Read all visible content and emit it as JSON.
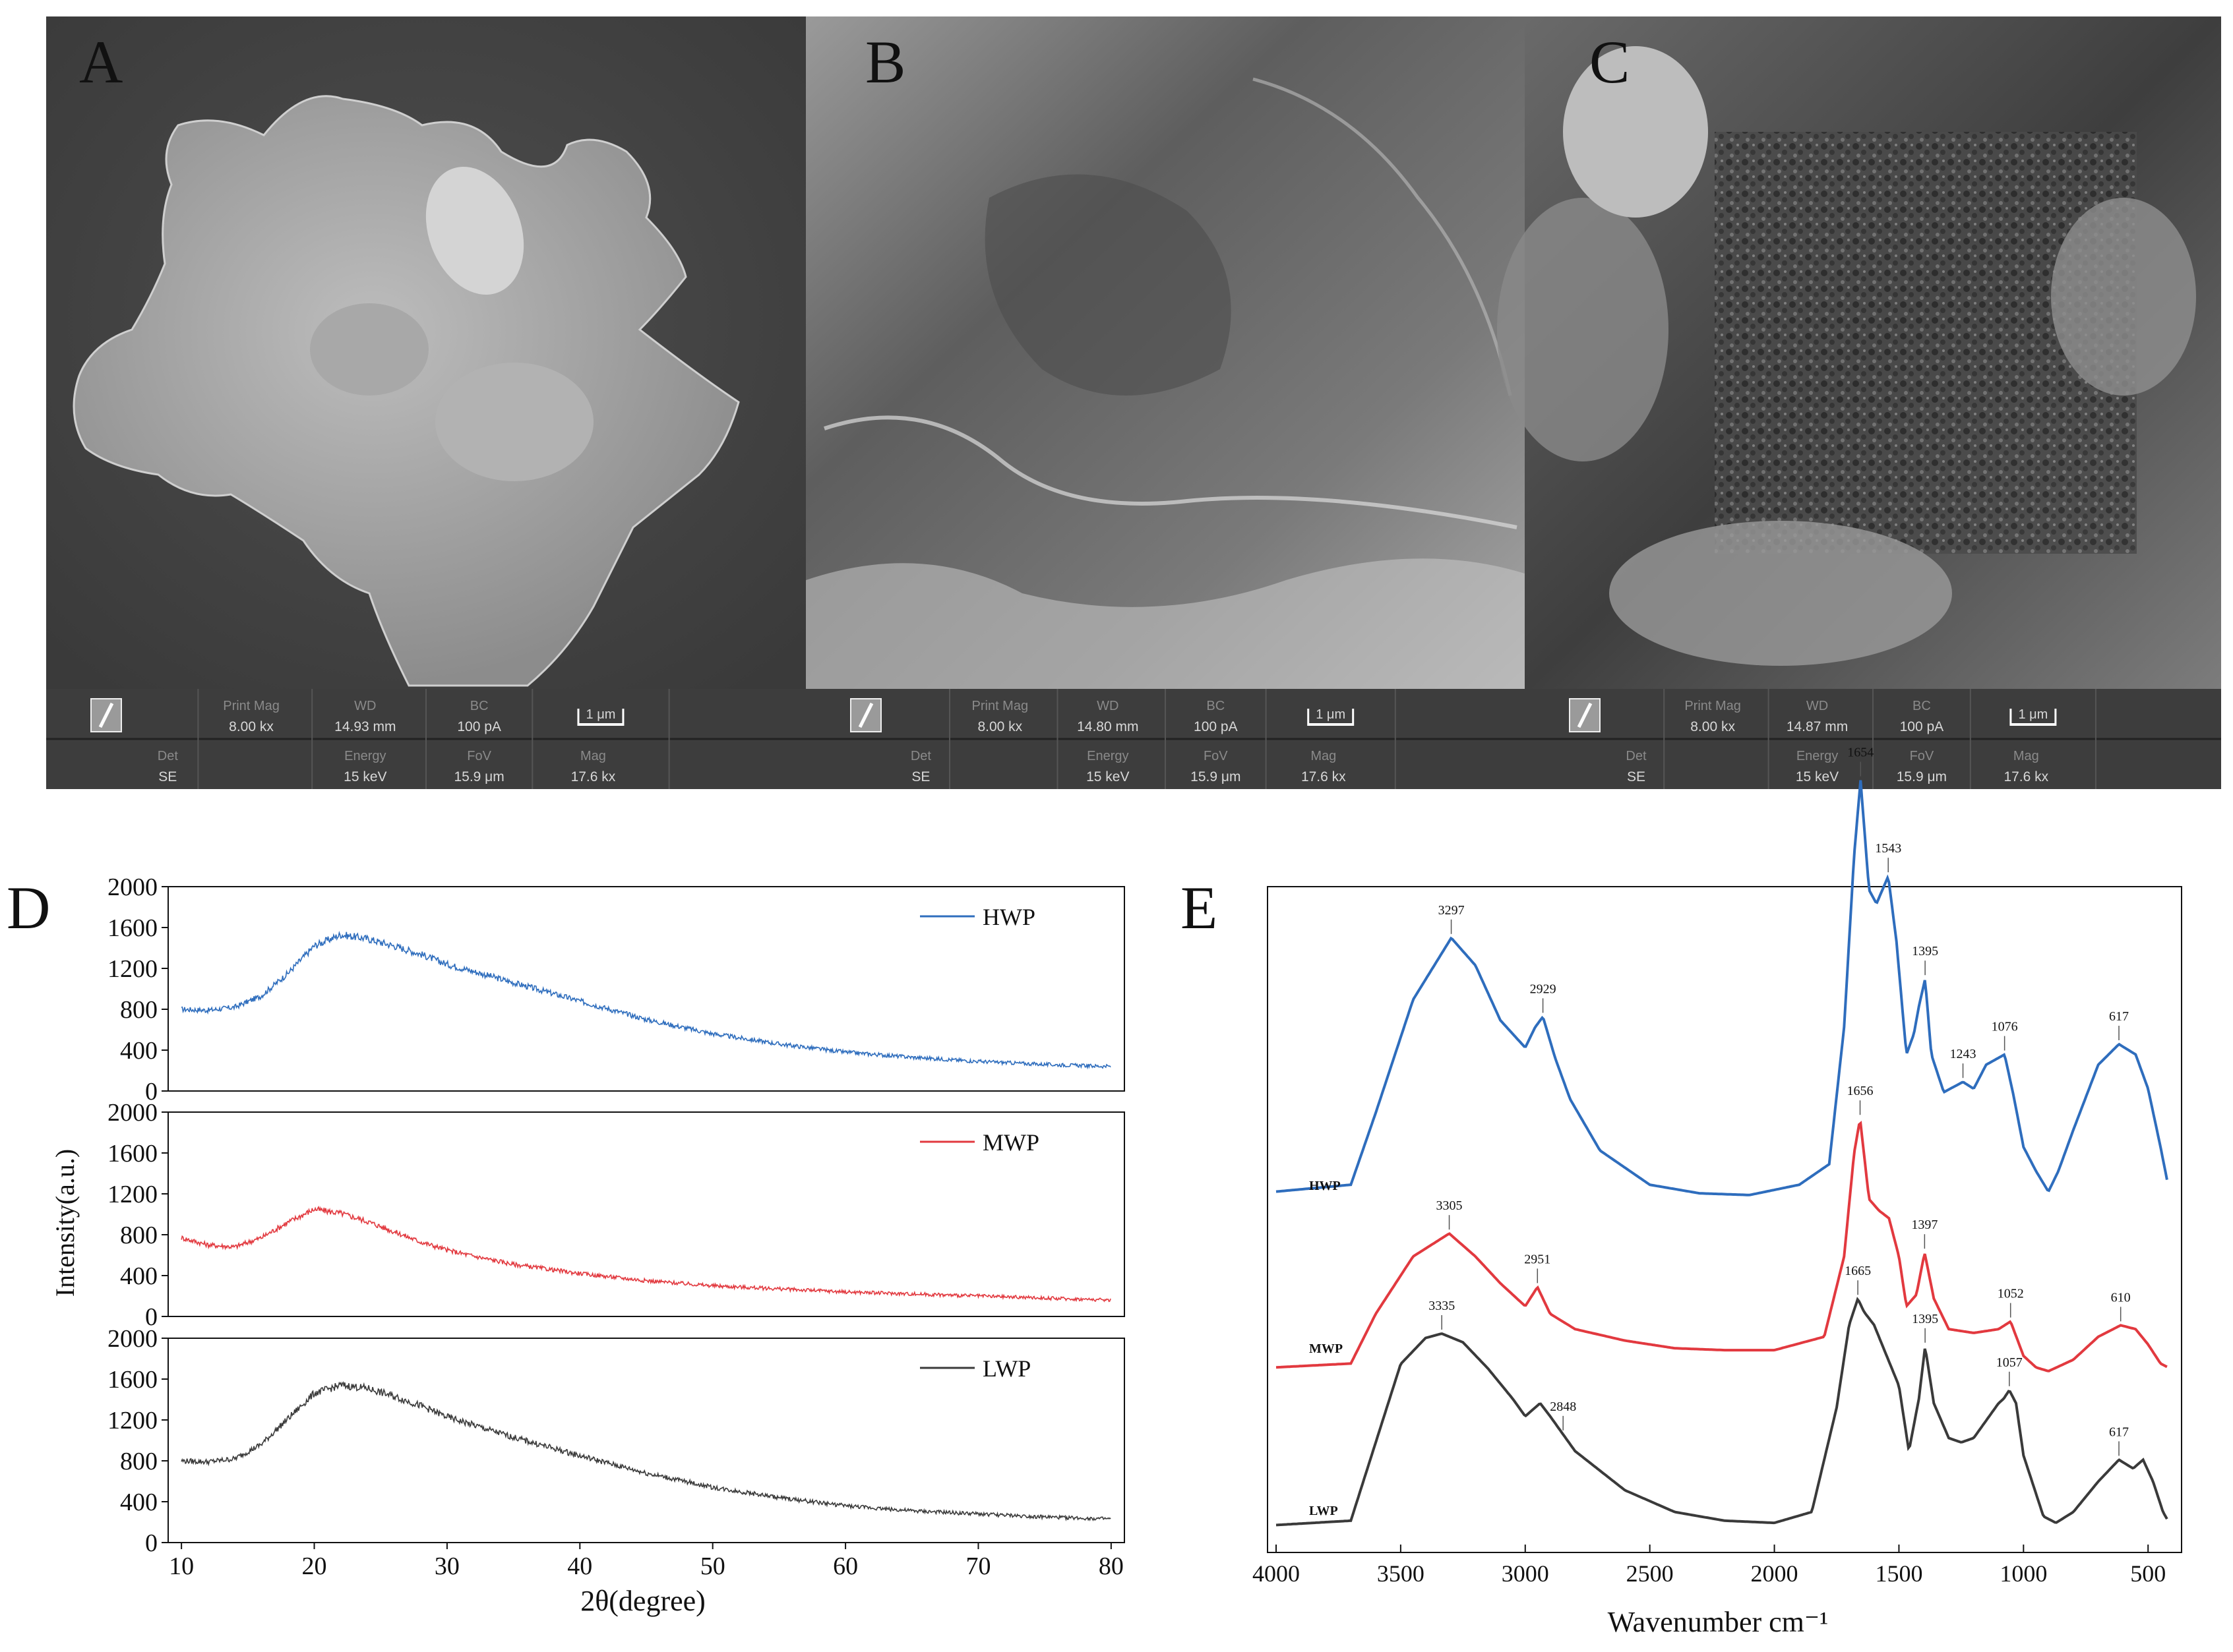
{
  "figure": {
    "panel_labels": [
      "A",
      "B",
      "C",
      "D",
      "E"
    ]
  },
  "sem_panels": [
    {
      "label": "A",
      "info": {
        "print_mag_label": "Print Mag",
        "print_mag": "8.00 kx",
        "wd_label": "WD",
        "wd": "14.93 mm",
        "bc_label": "BC",
        "bc": "100 pA",
        "scale": "1 μm",
        "det_label": "Det",
        "det": "SE",
        "energy_label": "Energy",
        "energy": "15 keV",
        "fov_label": "FoV",
        "fov": "15.9 μm",
        "mag_label": "Mag",
        "mag": "17.6 kx"
      }
    },
    {
      "label": "B",
      "info": {
        "print_mag_label": "Print Mag",
        "print_mag": "8.00 kx",
        "wd_label": "WD",
        "wd": "14.80 mm",
        "bc_label": "BC",
        "bc": "100 pA",
        "scale": "1 μm",
        "det_label": "Det",
        "det": "SE",
        "energy_label": "Energy",
        "energy": "15 keV",
        "fov_label": "FoV",
        "fov": "15.9 μm",
        "mag_label": "Mag",
        "mag": "17.6 kx"
      }
    },
    {
      "label": "C",
      "info": {
        "print_mag_label": "Print Mag",
        "print_mag": "8.00 kx",
        "wd_label": "WD",
        "wd": "14.87 mm",
        "bc_label": "BC",
        "bc": "100 pA",
        "scale": "1 μm",
        "det_label": "Det",
        "det": "SE",
        "energy_label": "Energy",
        "energy": "15 keV",
        "fov_label": "FoV",
        "fov": "15.9 μm",
        "mag_label": "Mag",
        "mag": "17.6 kx"
      }
    }
  ],
  "chart_data": [
    {
      "panel": "D",
      "type": "line",
      "xlabel": "2θ(degree)",
      "ylabel": "Intensity(a.u.)",
      "xlim": [
        9,
        81
      ],
      "ylim": [
        0,
        2000
      ],
      "xticks": [
        10,
        20,
        30,
        40,
        50,
        60,
        70,
        80
      ],
      "yticks": [
        0,
        400,
        800,
        1200,
        1600,
        2000
      ],
      "legend_position": "top-right",
      "series": [
        {
          "name": "HWP",
          "color": "#2e6dbd",
          "x": [
            10,
            12,
            14,
            16,
            18,
            20,
            22,
            24,
            26,
            28,
            30,
            32,
            35,
            40,
            45,
            50,
            55,
            60,
            65,
            70,
            75,
            80
          ],
          "y": [
            800,
            790,
            820,
            930,
            1150,
            1420,
            1530,
            1490,
            1420,
            1340,
            1240,
            1170,
            1060,
            880,
            700,
            560,
            460,
            380,
            330,
            290,
            260,
            240
          ]
        },
        {
          "name": "MWP",
          "color": "#e2393f",
          "x": [
            10,
            12,
            14,
            16,
            18,
            20,
            22,
            24,
            26,
            28,
            30,
            32,
            35,
            40,
            45,
            50,
            55,
            60,
            65,
            70,
            75,
            80
          ],
          "y": [
            770,
            700,
            680,
            770,
            920,
            1050,
            1010,
            930,
            830,
            730,
            650,
            590,
            510,
            420,
            350,
            300,
            270,
            240,
            220,
            200,
            180,
            160
          ]
        },
        {
          "name": "LWP",
          "color": "#3a3a3a",
          "x": [
            10,
            12,
            14,
            16,
            18,
            20,
            22,
            24,
            26,
            28,
            30,
            32,
            35,
            40,
            45,
            50,
            55,
            60,
            65,
            70,
            75,
            80
          ],
          "y": [
            800,
            790,
            820,
            960,
            1210,
            1460,
            1540,
            1510,
            1430,
            1340,
            1230,
            1150,
            1030,
            850,
            680,
            540,
            440,
            360,
            310,
            280,
            250,
            230
          ]
        }
      ]
    },
    {
      "panel": "E",
      "type": "line",
      "xlabel": "Wavenumber cm⁻¹",
      "ylabel": "",
      "xlim": [
        4000,
        400
      ],
      "x_reversed": true,
      "xticks": [
        4000,
        3500,
        3000,
        2500,
        2000,
        1500,
        1000,
        500
      ],
      "series": [
        {
          "name": "HWP",
          "color": "#2e6dbd",
          "x": [
            4000,
            3700,
            3600,
            3450,
            3297,
            3200,
            3100,
            3000,
            2960,
            2929,
            2880,
            2820,
            2700,
            2500,
            2300,
            2100,
            1900,
            1780,
            1720,
            1680,
            1654,
            1620,
            1590,
            1543,
            1510,
            1470,
            1440,
            1420,
            1395,
            1370,
            1320,
            1243,
            1200,
            1150,
            1076,
            1040,
            1000,
            950,
            900,
            860,
            800,
            700,
            617,
            550,
            500,
            450,
            420
          ],
          "y": [
            20,
            40,
            250,
            580,
            760,
            680,
            520,
            440,
            500,
            530,
            410,
            290,
            140,
            40,
            15,
            10,
            40,
            100,
            500,
            1000,
            1220,
            900,
            860,
            940,
            750,
            420,
            480,
            560,
            640,
            420,
            310,
            340,
            320,
            390,
            420,
            300,
            150,
            80,
            20,
            80,
            200,
            390,
            450,
            420,
            320,
            150,
            40
          ]
        },
        {
          "name": "MWP",
          "color": "#e2393f",
          "x": [
            4000,
            3700,
            3600,
            3450,
            3305,
            3200,
            3100,
            3000,
            2951,
            2900,
            2800,
            2600,
            2400,
            2200,
            2000,
            1800,
            1720,
            1680,
            1656,
            1620,
            1580,
            1540,
            1500,
            1470,
            1430,
            1397,
            1360,
            1300,
            1200,
            1100,
            1052,
            1000,
            950,
            900,
            800,
            700,
            610,
            550,
            500,
            450,
            420
          ],
          "y": [
            10,
            20,
            150,
            300,
            360,
            300,
            230,
            170,
            220,
            150,
            110,
            80,
            60,
            55,
            55,
            90,
            300,
            570,
            660,
            450,
            420,
            400,
            300,
            170,
            200,
            310,
            190,
            110,
            100,
            110,
            130,
            40,
            10,
            0,
            30,
            90,
            120,
            110,
            70,
            20,
            10
          ]
        },
        {
          "name": "LWP",
          "color": "#3a3a3a",
          "x": [
            4000,
            3700,
            3600,
            3500,
            3400,
            3335,
            3250,
            3150,
            3050,
            3000,
            2940,
            2900,
            2800,
            2600,
            2400,
            2200,
            2000,
            1850,
            1750,
            1700,
            1665,
            1640,
            1600,
            1550,
            1500,
            1460,
            1420,
            1395,
            1360,
            1300,
            1250,
            1200,
            1150,
            1100,
            1080,
            1057,
            1030,
            1000,
            960,
            920,
            870,
            800,
            700,
            617,
            560,
            520,
            480,
            440,
            420
          ],
          "y": [
            10,
            20,
            200,
            380,
            440,
            450,
            430,
            370,
            300,
            260,
            290,
            260,
            180,
            90,
            40,
            20,
            15,
            40,
            280,
            470,
            530,
            500,
            470,
            400,
            330,
            180,
            300,
            420,
            290,
            210,
            200,
            210,
            250,
            290,
            300,
            320,
            290,
            170,
            100,
            30,
            15,
            40,
            110,
            160,
            140,
            160,
            110,
            40,
            20
          ]
        }
      ],
      "annotations": [
        {
          "series": "HWP",
          "x": 3297,
          "text": "3297"
        },
        {
          "series": "HWP",
          "x": 2929,
          "text": "2929"
        },
        {
          "series": "HWP",
          "x": 1654,
          "text": "1654"
        },
        {
          "series": "HWP",
          "x": 1543,
          "text": "1543"
        },
        {
          "series": "HWP",
          "x": 1395,
          "text": "1395"
        },
        {
          "series": "HWP",
          "x": 1243,
          "text": "1243"
        },
        {
          "series": "HWP",
          "x": 1076,
          "text": "1076"
        },
        {
          "series": "HWP",
          "x": 617,
          "text": "617"
        },
        {
          "series": "MWP",
          "x": 3305,
          "text": "3305"
        },
        {
          "series": "MWP",
          "x": 2951,
          "text": "2951"
        },
        {
          "series": "MWP",
          "x": 1656,
          "text": "1656"
        },
        {
          "series": "MWP",
          "x": 1397,
          "text": "1397"
        },
        {
          "series": "MWP",
          "x": 1052,
          "text": "1052"
        },
        {
          "series": "MWP",
          "x": 610,
          "text": "610"
        },
        {
          "series": "LWP",
          "x": 3335,
          "text": "3335"
        },
        {
          "series": "LWP",
          "x": 2848,
          "text": "2848"
        },
        {
          "series": "LWP",
          "x": 1665,
          "text": "1665"
        },
        {
          "series": "LWP",
          "x": 1395,
          "text": "1395"
        },
        {
          "series": "LWP",
          "x": 1057,
          "text": "1057"
        },
        {
          "series": "LWP",
          "x": 617,
          "text": "617"
        }
      ]
    }
  ]
}
